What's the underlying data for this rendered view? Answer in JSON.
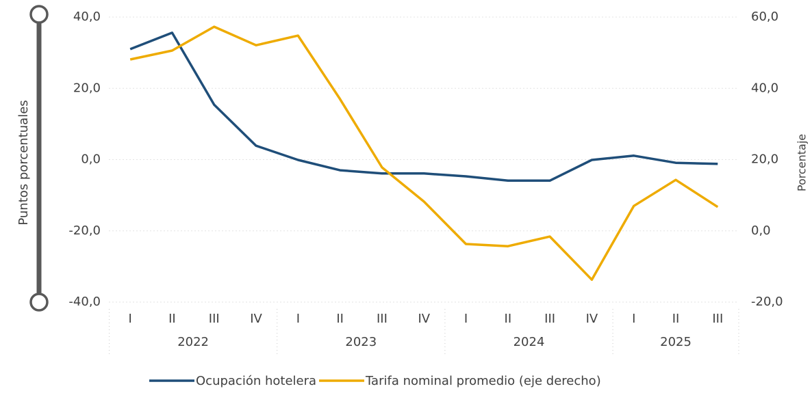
{
  "chart_data": {
    "type": "line",
    "categories": [
      "I",
      "II",
      "III",
      "IV",
      "I",
      "II",
      "III",
      "IV",
      "I",
      "II",
      "III",
      "IV",
      "I",
      "II",
      "III"
    ],
    "category_groups": [
      {
        "name": "2022",
        "count": 4
      },
      {
        "name": "2023",
        "count": 4
      },
      {
        "name": "2024",
        "count": 4
      },
      {
        "name": "2025",
        "count": 3
      }
    ],
    "ylabel": "Puntos porcentuales",
    "y2label": "Porcentaje",
    "ylim": [
      -40,
      40
    ],
    "yticks": [
      {
        "value": -40,
        "label": "-40,0"
      },
      {
        "value": -20,
        "label": "-20,0"
      },
      {
        "value": 0,
        "label": "0,0"
      },
      {
        "value": 20,
        "label": "20,0"
      },
      {
        "value": 40,
        "label": "40,0"
      }
    ],
    "y2lim": [
      -20,
      60
    ],
    "y2ticks": [
      {
        "value": -20,
        "label": "-20,0"
      },
      {
        "value": 0,
        "label": "0,0"
      },
      {
        "value": 20,
        "label": "20,0"
      },
      {
        "value": 40,
        "label": "40,0"
      },
      {
        "value": 60,
        "label": "60,0"
      }
    ],
    "grid": true,
    "legend": "bottom",
    "series": [
      {
        "name": "Ocupación hotelera",
        "color": "#1f4e79",
        "values": [
          31.0,
          35.6,
          15.4,
          3.9,
          -0.1,
          -3.0,
          -3.9,
          -3.9,
          -4.7,
          -5.9,
          -5.9,
          -0.1,
          1.1,
          -0.9,
          -1.2
        ]
      },
      {
        "name": "Tarifa nominal promedio (eje derecho)",
        "color": "#eeab00",
        "axis": "y2",
        "values": [
          48.1,
          50.6,
          57.3,
          52.1,
          54.8,
          37.0,
          17.8,
          8.2,
          -3.7,
          -4.3,
          -1.6,
          -13.7,
          7.0,
          14.3,
          6.7
        ]
      }
    ]
  }
}
